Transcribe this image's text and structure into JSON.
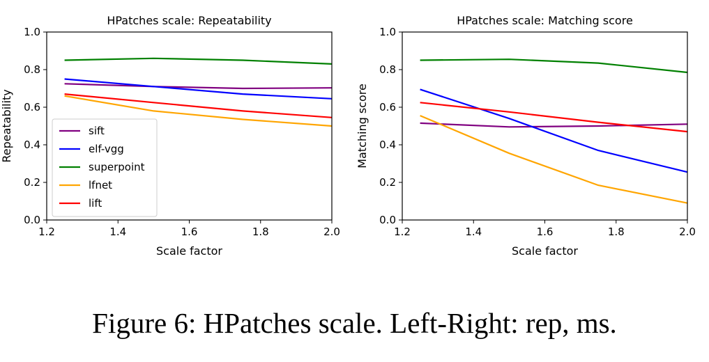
{
  "caption": "Figure 6: HPatches scale. Left-Right: rep, ms.",
  "chart_data": [
    {
      "type": "line",
      "title": "HPatches scale: Repeatability",
      "xlabel": "Scale factor",
      "ylabel": "Repeatability",
      "xlim": [
        1.2,
        2.0
      ],
      "ylim": [
        0.0,
        1.0
      ],
      "xticks": [
        "1.2",
        "1.4",
        "1.6",
        "1.8",
        "2.0"
      ],
      "yticks": [
        "0.0",
        "0.2",
        "0.4",
        "0.6",
        "0.8",
        "1.0"
      ],
      "grid": false,
      "legend": "lower-left",
      "x": [
        1.25,
        1.5,
        1.75,
        2.0
      ],
      "series": [
        {
          "name": "sift",
          "color": "#800080",
          "values": [
            0.725,
            0.71,
            0.7,
            0.703
          ]
        },
        {
          "name": "elf-vgg",
          "color": "#0000ff",
          "values": [
            0.75,
            0.71,
            0.67,
            0.645
          ]
        },
        {
          "name": "superpoint",
          "color": "#008000",
          "values": [
            0.85,
            0.86,
            0.85,
            0.83
          ]
        },
        {
          "name": "lfnet",
          "color": "#ffa500",
          "values": [
            0.66,
            0.58,
            0.535,
            0.5
          ]
        },
        {
          "name": "lift",
          "color": "#ff0000",
          "values": [
            0.67,
            0.625,
            0.58,
            0.545
          ]
        }
      ]
    },
    {
      "type": "line",
      "title": "HPatches scale: Matching score",
      "xlabel": "Scale factor",
      "ylabel": "Matching score",
      "xlim": [
        1.2,
        2.0
      ],
      "ylim": [
        0.0,
        1.0
      ],
      "xticks": [
        "1.2",
        "1.4",
        "1.6",
        "1.8",
        "2.0"
      ],
      "yticks": [
        "0.0",
        "0.2",
        "0.4",
        "0.6",
        "0.8",
        "1.0"
      ],
      "grid": false,
      "legend": "none",
      "x": [
        1.25,
        1.5,
        1.75,
        2.0
      ],
      "series": [
        {
          "color": "#800080",
          "values": [
            0.515,
            0.495,
            0.5,
            0.51
          ]
        },
        {
          "color": "#0000ff",
          "values": [
            0.695,
            0.54,
            0.37,
            0.255
          ]
        },
        {
          "color": "#008000",
          "values": [
            0.85,
            0.855,
            0.835,
            0.785
          ]
        },
        {
          "color": "#ffa500",
          "values": [
            0.555,
            0.355,
            0.185,
            0.09
          ]
        },
        {
          "color": "#ff0000",
          "values": [
            0.625,
            0.575,
            0.52,
            0.47
          ]
        }
      ]
    }
  ]
}
